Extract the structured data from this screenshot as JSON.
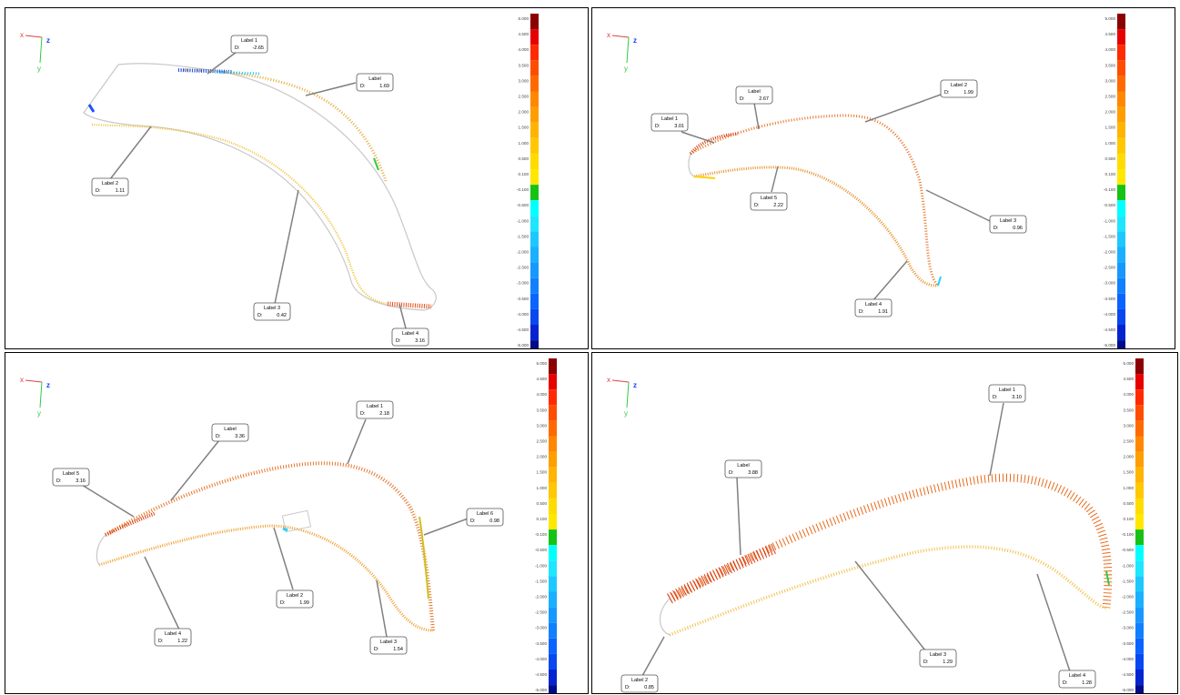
{
  "colors": {
    "axis_x": "#e04040",
    "axis_y": "#2ecc40",
    "axis_z": "#1a3cff",
    "leader": "#808080",
    "outline": "#c8c8c8"
  },
  "axis_labels": {
    "x": "x",
    "y": "y",
    "z": "z"
  },
  "scale": {
    "ticks": [
      "5.000",
      "4.500",
      "4.000",
      "3.500",
      "3.000",
      "2.500",
      "2.000",
      "1.500",
      "1.000",
      "0.500",
      "0.100",
      "-0.100",
      "-0.500",
      "-1.000",
      "-1.500",
      "-2.000",
      "-2.500",
      "-3.000",
      "-3.500",
      "-4.000",
      "-4.500",
      "-5.000"
    ],
    "colors": [
      "#8b0000",
      "#e60000",
      "#ff2a00",
      "#ff4d00",
      "#ff6a00",
      "#ff8800",
      "#ff9e00",
      "#ffb400",
      "#ffc800",
      "#ffdc00",
      "#ffe800",
      "#16c216",
      "#00ffff",
      "#1ee6ff",
      "#1ec8ff",
      "#1ab0ff",
      "#1698ff",
      "#1080ff",
      "#0a64ff",
      "#0848f0",
      "#0424d0",
      "#000a8a"
    ]
  },
  "panels": [
    {
      "labels": [
        {
          "name": "Label 1",
          "d_prefix": "D:",
          "value": "-2.65"
        },
        {
          "name": "Label",
          "d_prefix": "D:",
          "value": "1.69"
        },
        {
          "name": "Label 2",
          "d_prefix": "D:",
          "value": "1.11"
        },
        {
          "name": "Label 3",
          "d_prefix": "D:",
          "value": "0.42"
        },
        {
          "name": "Label 4",
          "d_prefix": "D:",
          "value": "3.16"
        }
      ]
    },
    {
      "labels": [
        {
          "name": "Label",
          "d_prefix": "D:",
          "value": "2.67"
        },
        {
          "name": "Label 1",
          "d_prefix": "D:",
          "value": "3.01"
        },
        {
          "name": "Label 2",
          "d_prefix": "D:",
          "value": "1.99"
        },
        {
          "name": "Label 5",
          "d_prefix": "D:",
          "value": "2.22"
        },
        {
          "name": "Label 3",
          "d_prefix": "D:",
          "value": "0.96"
        },
        {
          "name": "Label 4",
          "d_prefix": "D:",
          "value": "1.91"
        }
      ]
    },
    {
      "labels": [
        {
          "name": "Label 1",
          "d_prefix": "D:",
          "value": "2.18"
        },
        {
          "name": "Label",
          "d_prefix": "D:",
          "value": "3.36"
        },
        {
          "name": "Label 5",
          "d_prefix": "D:",
          "value": "3.16"
        },
        {
          "name": "Label 6",
          "d_prefix": "D:",
          "value": "0.98"
        },
        {
          "name": "Label 2",
          "d_prefix": "D:",
          "value": "1.99"
        },
        {
          "name": "Label 4",
          "d_prefix": "D:",
          "value": "1.22"
        },
        {
          "name": "Label 3",
          "d_prefix": "D:",
          "value": "1.54"
        }
      ]
    },
    {
      "labels": [
        {
          "name": "Label 1",
          "d_prefix": "D:",
          "value": "3.10"
        },
        {
          "name": "Label",
          "d_prefix": "D:",
          "value": "3.88"
        },
        {
          "name": "Label 3",
          "d_prefix": "D:",
          "value": "1.29"
        },
        {
          "name": "Label 4",
          "d_prefix": "D:",
          "value": "1.28"
        },
        {
          "name": "Label 2",
          "d_prefix": "D:",
          "value": "0.85"
        }
      ]
    }
  ]
}
